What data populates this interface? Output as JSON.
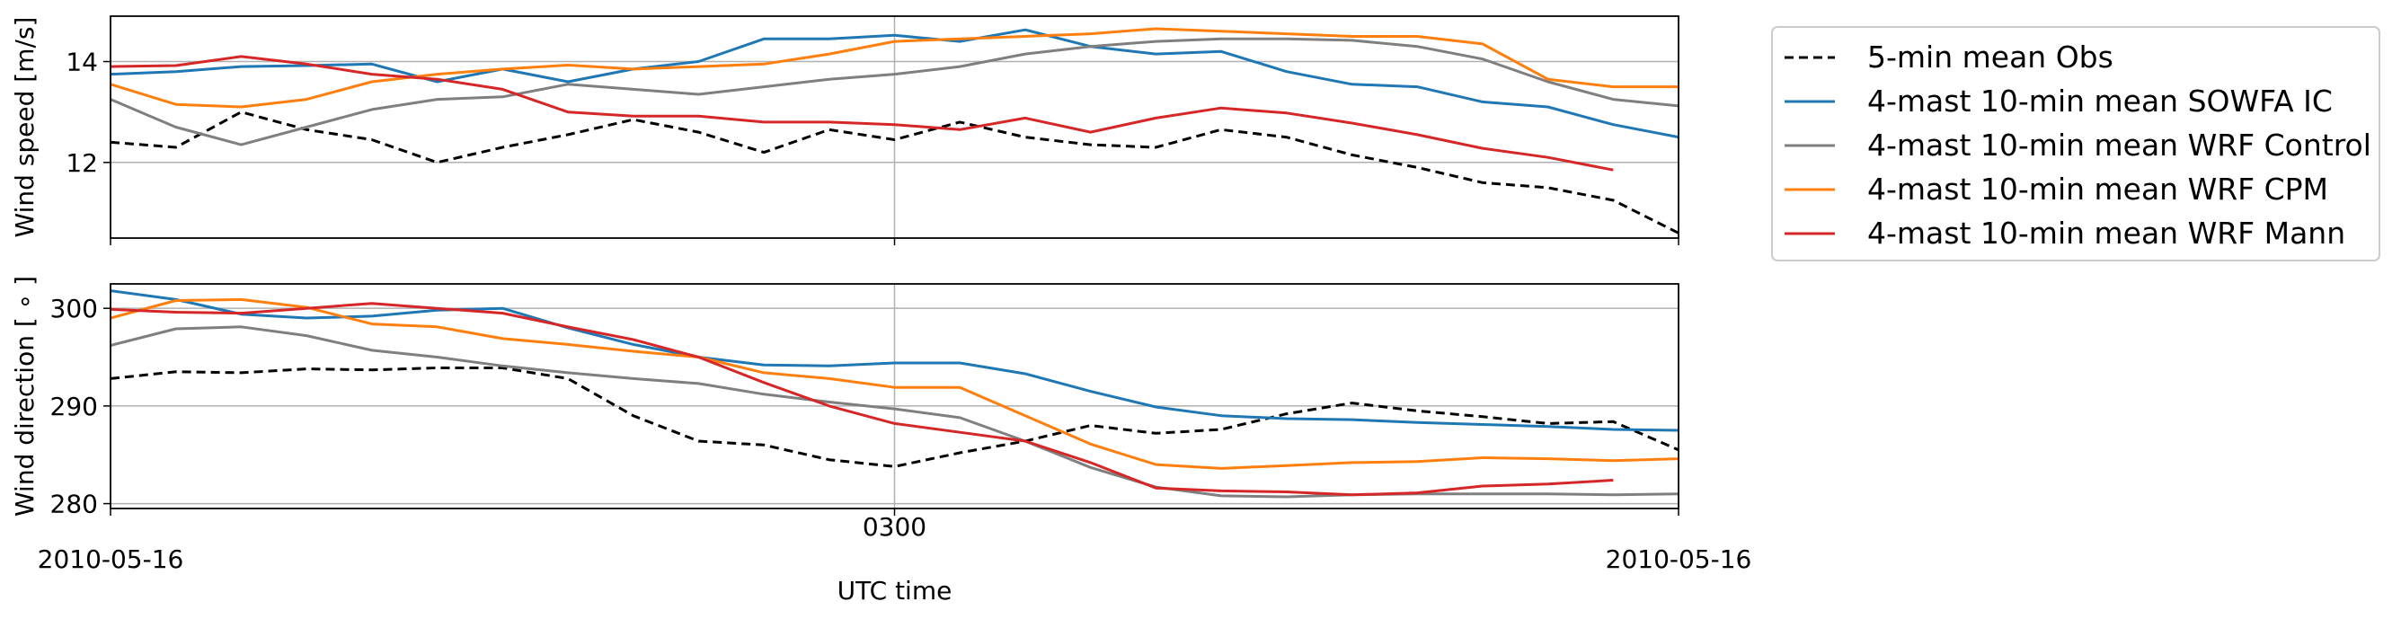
{
  "chart_data": [
    {
      "type": "line",
      "ylabel": "Wind speed [m/s]",
      "xlabel": "",
      "ylim": [
        10.5,
        14.9
      ],
      "yticks": [
        12,
        14
      ],
      "xlim": [
        0,
        24
      ],
      "grid": true,
      "x": [
        0,
        1,
        2,
        3,
        4,
        5,
        6,
        7,
        8,
        9,
        10,
        11,
        12,
        13,
        14,
        15,
        16,
        17,
        18,
        19,
        20,
        21,
        22,
        23,
        24
      ],
      "series": [
        {
          "name": "5-min mean Obs",
          "color": "#000000",
          "dash": true,
          "values": [
            12.4,
            12.3,
            13.0,
            12.65,
            12.45,
            12.0,
            12.3,
            12.55,
            12.85,
            12.6,
            12.2,
            12.65,
            12.45,
            12.8,
            12.5,
            12.35,
            12.3,
            12.65,
            12.5,
            12.15,
            11.9,
            11.6,
            11.5,
            11.25,
            10.6
          ]
        },
        {
          "name": "4-mast 10-min mean SOWFA IC",
          "color": "#1f77b4",
          "dash": false,
          "values": [
            13.75,
            13.8,
            13.9,
            13.92,
            13.95,
            13.6,
            13.85,
            13.6,
            13.85,
            14.0,
            14.45,
            14.45,
            14.52,
            14.4,
            14.63,
            14.3,
            14.15,
            14.2,
            13.8,
            13.55,
            13.5,
            13.2,
            13.1,
            12.75,
            12.5
          ]
        },
        {
          "name": "4-mast 10-min mean WRF Control",
          "color": "#7f7f7f",
          "dash": false,
          "values": [
            13.25,
            12.7,
            12.35,
            12.7,
            13.05,
            13.25,
            13.3,
            13.55,
            13.45,
            13.35,
            13.5,
            13.65,
            13.75,
            13.9,
            14.15,
            14.3,
            14.4,
            14.45,
            14.45,
            14.42,
            14.3,
            14.05,
            13.6,
            13.25,
            13.12
          ]
        },
        {
          "name": "4-mast 10-min mean WRF CPM",
          "color": "#ff7f0e",
          "dash": false,
          "values": [
            13.55,
            13.15,
            13.1,
            13.25,
            13.6,
            13.75,
            13.85,
            13.93,
            13.85,
            13.9,
            13.95,
            14.15,
            14.4,
            14.45,
            14.5,
            14.55,
            14.65,
            14.6,
            14.55,
            14.5,
            14.5,
            14.35,
            13.65,
            13.5,
            13.5
          ]
        },
        {
          "name": "4-mast 10-min mean WRF Mann",
          "color": "#d62728",
          "dash": false,
          "values": [
            13.9,
            13.92,
            14.1,
            13.95,
            13.75,
            13.65,
            13.45,
            13.0,
            12.92,
            12.92,
            12.8,
            12.8,
            12.75,
            12.65,
            12.88,
            12.6,
            12.88,
            13.08,
            12.98,
            12.78,
            12.55,
            12.28,
            12.1,
            11.85,
            null
          ]
        }
      ]
    },
    {
      "type": "line",
      "ylabel": "Wind direction [ ∘ ]",
      "xlabel": "UTC time",
      "ylim": [
        279.5,
        302.5
      ],
      "yticks": [
        280,
        290,
        300
      ],
      "xlim": [
        0,
        24
      ],
      "grid": true,
      "x": [
        0,
        1,
        2,
        3,
        4,
        5,
        6,
        7,
        8,
        9,
        10,
        11,
        12,
        13,
        14,
        15,
        16,
        17,
        18,
        19,
        20,
        21,
        22,
        23,
        24
      ],
      "xtick_labels": [
        {
          "x": 0,
          "label": "2010-05-16"
        },
        {
          "x": 12,
          "label": "0300"
        },
        {
          "x": 24,
          "label": "2010-05-16"
        }
      ],
      "series": [
        {
          "name": "5-min mean Obs",
          "color": "#000000",
          "dash": true,
          "values": [
            292.8,
            293.5,
            293.4,
            293.8,
            293.7,
            293.9,
            293.9,
            292.8,
            289.0,
            286.4,
            286.0,
            284.5,
            283.8,
            285.2,
            286.4,
            288.0,
            287.2,
            287.6,
            289.2,
            290.3,
            289.5,
            288.9,
            288.2,
            288.4,
            285.5
          ]
        },
        {
          "name": "4-mast 10-min mean SOWFA IC",
          "color": "#1f77b4",
          "dash": false,
          "values": [
            301.8,
            300.9,
            299.4,
            299.0,
            299.2,
            299.8,
            300.0,
            298.0,
            296.3,
            295.0,
            294.2,
            294.1,
            294.4,
            294.4,
            293.3,
            291.5,
            289.9,
            289.0,
            288.7,
            288.6,
            288.3,
            288.1,
            287.9,
            287.6,
            287.5
          ]
        },
        {
          "name": "4-mast 10-min mean WRF Control",
          "color": "#7f7f7f",
          "dash": false,
          "values": [
            296.2,
            297.9,
            298.1,
            297.2,
            295.7,
            295.0,
            294.1,
            293.4,
            292.8,
            292.3,
            291.2,
            290.4,
            289.7,
            288.8,
            286.4,
            283.7,
            281.7,
            280.8,
            280.7,
            280.9,
            281.0,
            281.0,
            281.0,
            280.9,
            281.0
          ]
        },
        {
          "name": "4-mast 10-min mean WRF CPM",
          "color": "#ff7f0e",
          "dash": false,
          "values": [
            299.0,
            300.8,
            300.9,
            300.1,
            298.4,
            298.1,
            296.9,
            296.3,
            295.6,
            295.0,
            293.4,
            292.8,
            291.9,
            291.9,
            289.0,
            286.1,
            284.0,
            283.6,
            283.9,
            284.2,
            284.3,
            284.7,
            284.6,
            284.4,
            284.6
          ]
        },
        {
          "name": "4-mast 10-min mean WRF Mann",
          "color": "#d62728",
          "dash": false,
          "values": [
            299.9,
            299.6,
            299.5,
            300.0,
            300.5,
            300.0,
            299.5,
            298.1,
            296.8,
            295.0,
            292.4,
            290.0,
            288.2,
            287.3,
            286.4,
            284.2,
            281.6,
            281.3,
            281.2,
            280.9,
            281.1,
            281.8,
            282.0,
            282.4,
            null
          ]
        }
      ]
    }
  ],
  "legend": {
    "placement": "outside-right",
    "entries": [
      {
        "label": "5-min mean Obs",
        "color": "#000000",
        "dash": true
      },
      {
        "label": "4-mast 10-min mean SOWFA IC",
        "color": "#1f77b4",
        "dash": false
      },
      {
        "label": "4-mast 10-min mean WRF Control",
        "color": "#7f7f7f",
        "dash": false
      },
      {
        "label": "4-mast 10-min mean WRF CPM",
        "color": "#ff7f0e",
        "dash": false
      },
      {
        "label": "4-mast 10-min mean WRF Mann",
        "color": "#d62728",
        "dash": false
      }
    ]
  }
}
